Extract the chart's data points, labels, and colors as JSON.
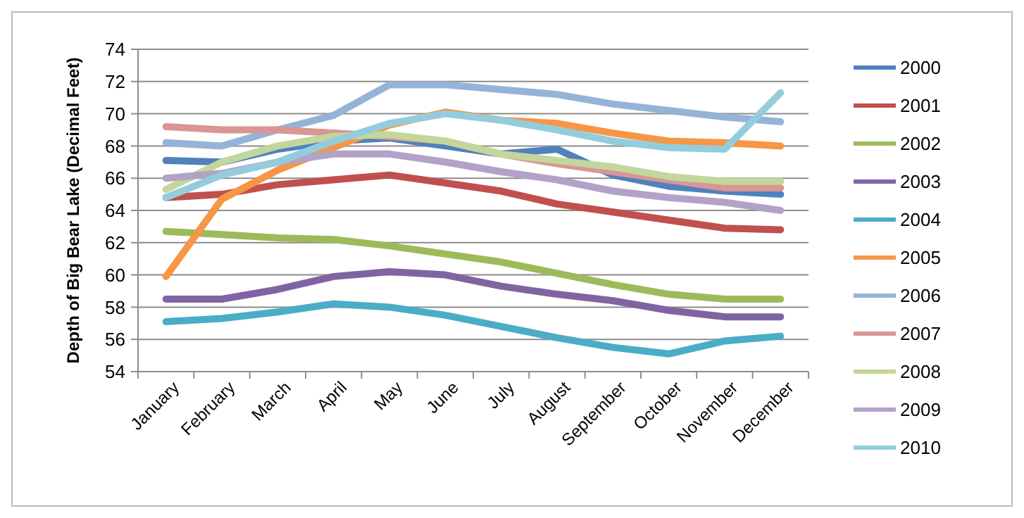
{
  "chart_data": {
    "type": "line",
    "ylabel": "Depth of Big Bear Lake (Decimal Feet)",
    "categories": [
      "January",
      "February",
      "March",
      "April",
      "May",
      "June",
      "July",
      "August",
      "September",
      "October",
      "November",
      "December"
    ],
    "ylim": [
      54,
      74
    ],
    "yticks": [
      54,
      56,
      58,
      60,
      62,
      64,
      66,
      68,
      70,
      72,
      74
    ],
    "grid": "y",
    "legend": "right",
    "marker": "none",
    "line_style": "solid",
    "series": [
      {
        "name": "2000",
        "color": "#4f81bd",
        "values": [
          67.1,
          67.0,
          67.8,
          68.3,
          68.5,
          68.0,
          67.5,
          67.8,
          66.2,
          65.5,
          65.2,
          65.0
        ]
      },
      {
        "name": "2001",
        "color": "#c0504d",
        "values": [
          64.8,
          65.0,
          65.6,
          65.9,
          66.2,
          65.7,
          65.2,
          64.4,
          63.9,
          63.4,
          62.9,
          62.8
        ]
      },
      {
        "name": "2002",
        "color": "#9bbb59",
        "values": [
          62.7,
          62.5,
          62.3,
          62.2,
          61.8,
          61.3,
          60.8,
          60.1,
          59.4,
          58.8,
          58.5,
          58.5
        ]
      },
      {
        "name": "2003",
        "color": "#8064a2",
        "values": [
          58.5,
          58.5,
          59.1,
          59.9,
          60.2,
          60.0,
          59.3,
          58.8,
          58.4,
          57.8,
          57.4,
          57.4
        ]
      },
      {
        "name": "2004",
        "color": "#4bacc6",
        "values": [
          57.1,
          57.3,
          57.7,
          58.2,
          58.0,
          57.5,
          56.8,
          56.1,
          55.5,
          55.1,
          55.9,
          56.2
        ]
      },
      {
        "name": "2005",
        "color": "#f79646",
        "values": [
          59.9,
          64.7,
          66.5,
          67.9,
          69.3,
          70.1,
          69.6,
          69.4,
          68.8,
          68.3,
          68.2,
          68.0
        ]
      },
      {
        "name": "2006",
        "color": "#95b3d7",
        "values": [
          68.2,
          68.0,
          69.0,
          69.9,
          71.8,
          71.8,
          71.5,
          71.2,
          70.6,
          70.2,
          69.8,
          69.5
        ]
      },
      {
        "name": "2007",
        "color": "#d99694",
        "values": [
          69.2,
          69.0,
          69.0,
          68.8,
          68.6,
          68.3,
          67.5,
          66.9,
          66.4,
          65.9,
          65.4,
          65.4
        ]
      },
      {
        "name": "2008",
        "color": "#c3d69b",
        "values": [
          65.3,
          67.0,
          68.0,
          68.6,
          68.7,
          68.3,
          67.5,
          67.1,
          66.7,
          66.1,
          65.8,
          65.8
        ]
      },
      {
        "name": "2009",
        "color": "#b2a2c7",
        "values": [
          66.0,
          66.3,
          67.0,
          67.5,
          67.5,
          67.0,
          66.4,
          65.9,
          65.2,
          64.8,
          64.5,
          64.0
        ]
      },
      {
        "name": "2010",
        "color": "#93cddd",
        "values": [
          64.8,
          66.2,
          67.0,
          68.3,
          69.4,
          70.0,
          69.6,
          69.0,
          68.3,
          67.9,
          67.8,
          71.3
        ]
      }
    ]
  }
}
